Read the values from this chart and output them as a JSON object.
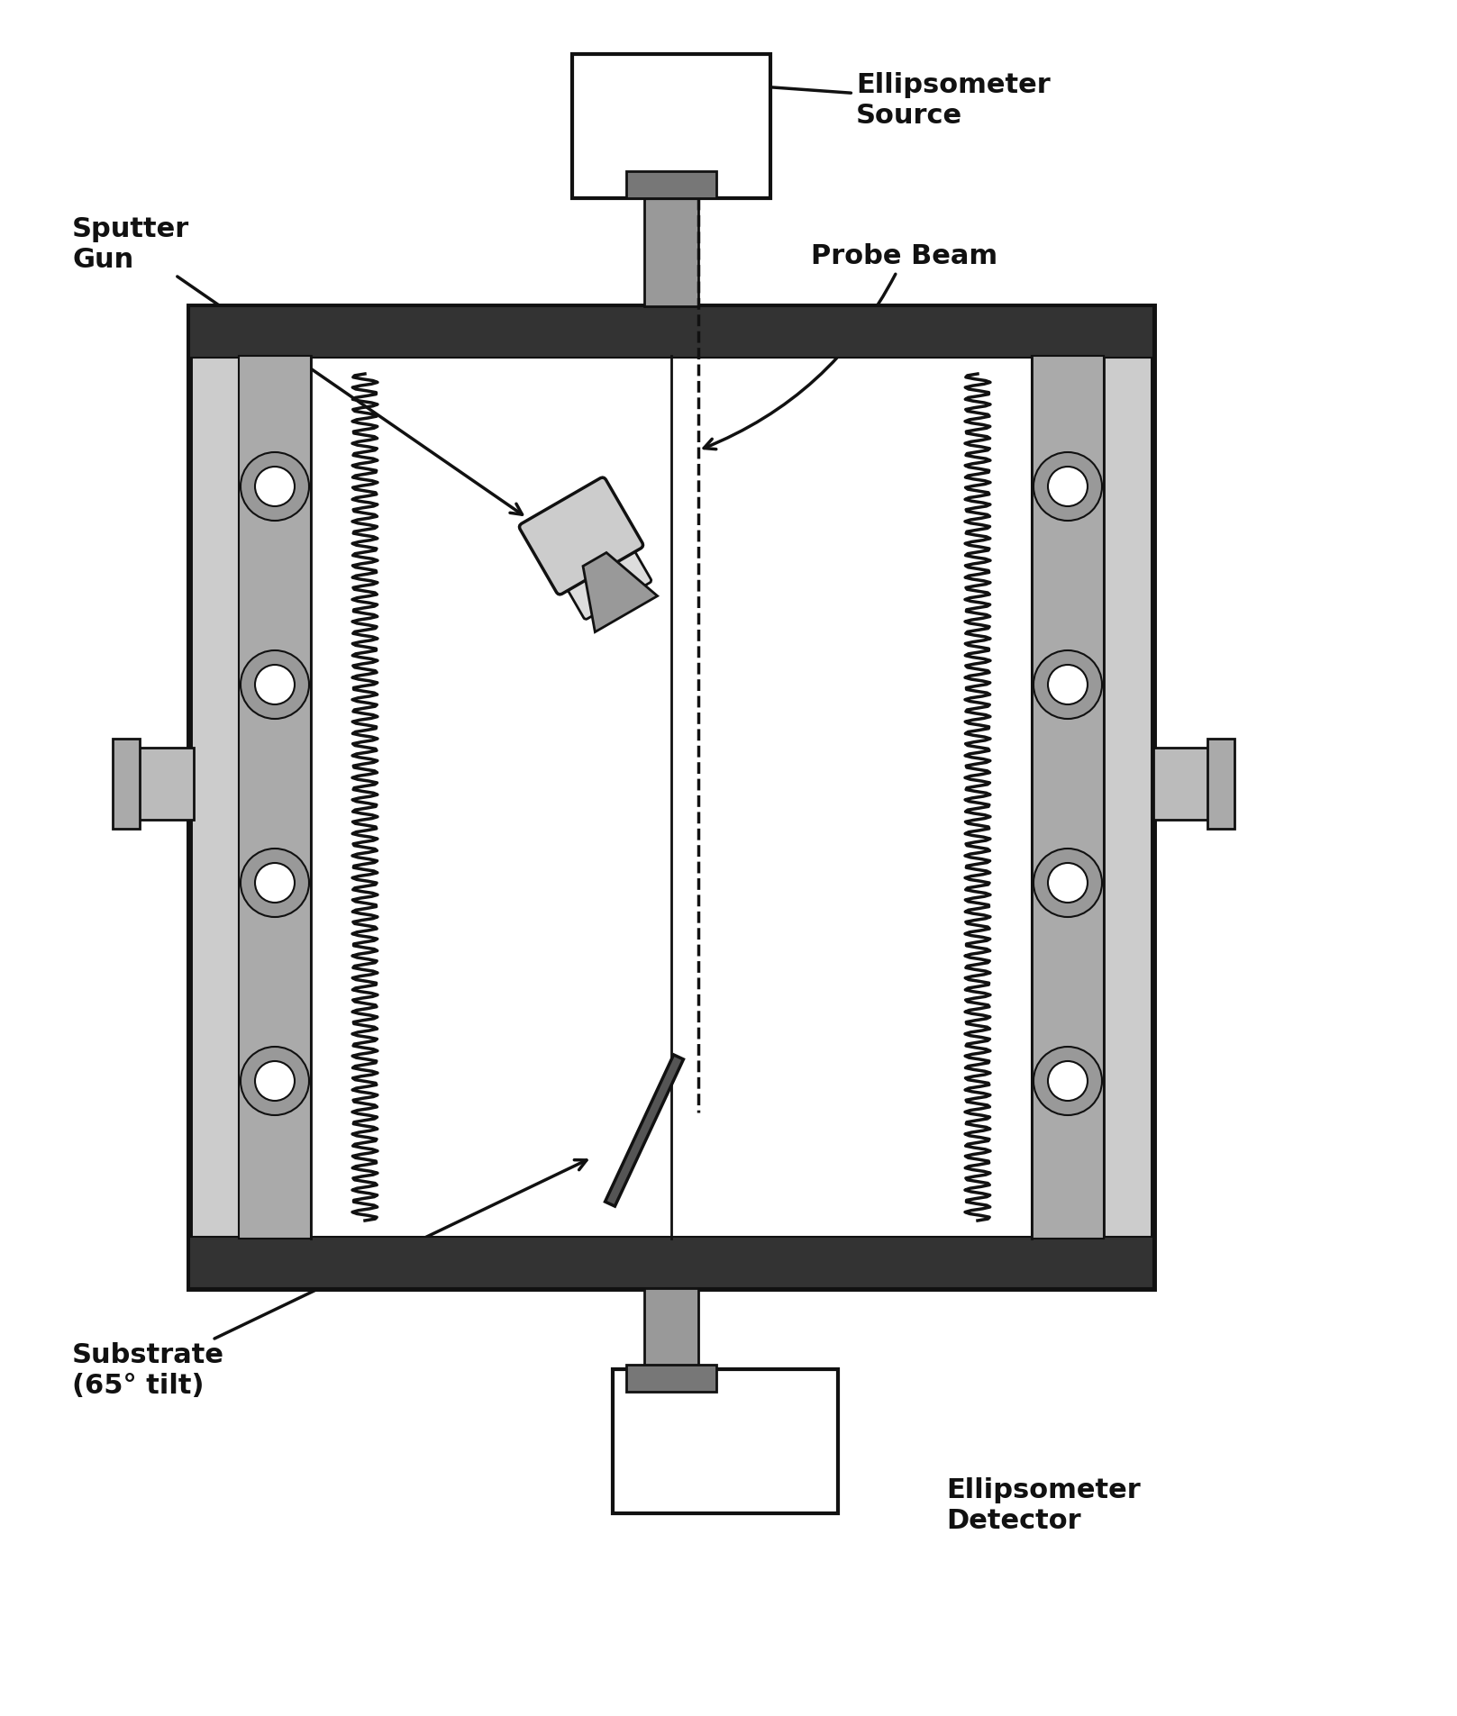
{
  "bg_color": "#ffffff",
  "text_color": "#000000",
  "labels": {
    "ellipsometer_source": "Ellipsometer\nSource",
    "probe_beam": "Probe Beam",
    "sputter_gun": "Sputter\nGun",
    "substrate": "Substrate\n(65° tilt)",
    "ellipsometer_detector": "Ellipsometer\nDetector"
  },
  "label_fontsize": 22,
  "figsize": [
    16.17,
    19.05
  ],
  "dpi": 100
}
